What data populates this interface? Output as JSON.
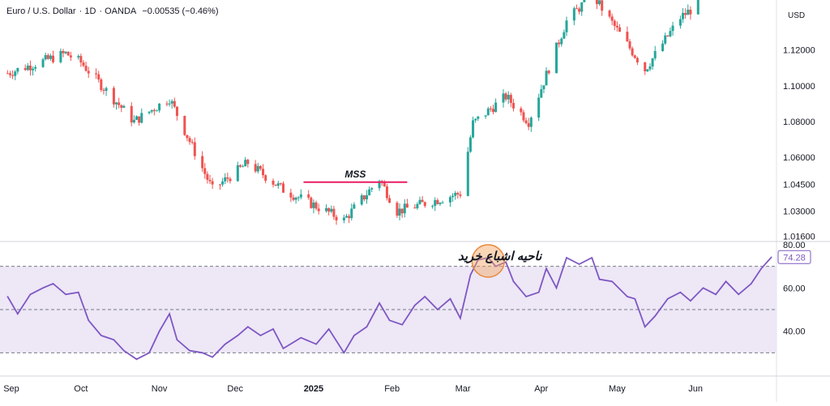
{
  "header": {
    "symbol": "Euro / U.S. Dollar",
    "interval": "1D",
    "broker": "OANDA",
    "change": "−0.00535 (−0.46%)"
  },
  "currency": "USD",
  "colors": {
    "up": "#26a69a",
    "down": "#ef5350",
    "rsi": "#7e57c2",
    "band": "#ede7f6",
    "mss": "#e91e63",
    "highlight": "#f4a460"
  },
  "chart_data": [
    {
      "type": "candlestick",
      "title": "Euro / U.S. Dollar · 1D · OANDA",
      "ylabel": "USD",
      "ylim": [
        1.014,
        1.146
      ],
      "yticks": [
        "1.12000",
        "1.10000",
        "1.08000",
        "1.06000",
        "1.04500",
        "1.03000",
        "1.01600"
      ],
      "ytick_values": [
        1.12,
        1.1,
        1.08,
        1.06,
        1.045,
        1.03,
        1.016
      ],
      "xticks": [
        "Sep",
        "Oct",
        "Nov",
        "Dec",
        "2025",
        "Feb",
        "Mar",
        "Apr",
        "May",
        "Jun"
      ],
      "annotation": {
        "label": "MSS",
        "price": 1.0462,
        "from": "2024-12-28",
        "to": "2025-02-07"
      },
      "key_closes": [
        {
          "date": "2024-09-02",
          "close": 1.107
        },
        {
          "date": "2024-09-25",
          "close": 1.118
        },
        {
          "date": "2024-10-01",
          "close": 1.113
        },
        {
          "date": "2024-10-22",
          "close": 1.08
        },
        {
          "date": "2024-11-05",
          "close": 1.093
        },
        {
          "date": "2024-11-22",
          "close": 1.042
        },
        {
          "date": "2024-12-06",
          "close": 1.057
        },
        {
          "date": "2024-12-20",
          "close": 1.042
        },
        {
          "date": "2025-01-13",
          "close": 1.025
        },
        {
          "date": "2025-01-27",
          "close": 1.048
        },
        {
          "date": "2025-02-03",
          "close": 1.03
        },
        {
          "date": "2025-02-28",
          "close": 1.04
        },
        {
          "date": "2025-03-05",
          "close": 1.079
        },
        {
          "date": "2025-03-18",
          "close": 1.094
        },
        {
          "date": "2025-03-27",
          "close": 1.08
        },
        {
          "date": "2025-04-11",
          "close": 1.136
        },
        {
          "date": "2025-04-21",
          "close": 1.151
        },
        {
          "date": "2025-05-12",
          "close": 1.109
        },
        {
          "date": "2025-05-26",
          "close": 1.138
        },
        {
          "date": "2025-06-12",
          "close": 1.156
        }
      ]
    },
    {
      "type": "line",
      "title": "RSI",
      "ylim": [
        20,
        80
      ],
      "yticks": [
        "80.00",
        "60.00",
        "40.00"
      ],
      "ytick_values": [
        80,
        60,
        40
      ],
      "levels": [
        70,
        50,
        30
      ],
      "last_value": "74.28",
      "annotation_text": "ناحیه اشباع خرید",
      "series": [
        {
          "date": "2024-09-02",
          "value": 56
        },
        {
          "date": "2024-09-06",
          "value": 48
        },
        {
          "date": "2024-09-11",
          "value": 57
        },
        {
          "date": "2024-09-16",
          "value": 60
        },
        {
          "date": "2024-09-20",
          "value": 62
        },
        {
          "date": "2024-09-25",
          "value": 57
        },
        {
          "date": "2024-09-30",
          "value": 58
        },
        {
          "date": "2024-10-04",
          "value": 45
        },
        {
          "date": "2024-10-09",
          "value": 38
        },
        {
          "date": "2024-10-14",
          "value": 36
        },
        {
          "date": "2024-10-18",
          "value": 31
        },
        {
          "date": "2024-10-23",
          "value": 27
        },
        {
          "date": "2024-10-28",
          "value": 30
        },
        {
          "date": "2024-11-01",
          "value": 40
        },
        {
          "date": "2024-11-05",
          "value": 48
        },
        {
          "date": "2024-11-08",
          "value": 36
        },
        {
          "date": "2024-11-13",
          "value": 31
        },
        {
          "date": "2024-11-18",
          "value": 30
        },
        {
          "date": "2024-11-22",
          "value": 28
        },
        {
          "date": "2024-11-27",
          "value": 34
        },
        {
          "date": "2024-12-02",
          "value": 38
        },
        {
          "date": "2024-12-06",
          "value": 42
        },
        {
          "date": "2024-12-11",
          "value": 38
        },
        {
          "date": "2024-12-16",
          "value": 41
        },
        {
          "date": "2024-12-20",
          "value": 32
        },
        {
          "date": "2024-12-27",
          "value": 37
        },
        {
          "date": "2025-01-02",
          "value": 34
        },
        {
          "date": "2025-01-07",
          "value": 41
        },
        {
          "date": "2025-01-13",
          "value": 30
        },
        {
          "date": "2025-01-17",
          "value": 38
        },
        {
          "date": "2025-01-22",
          "value": 42
        },
        {
          "date": "2025-01-27",
          "value": 53
        },
        {
          "date": "2025-01-31",
          "value": 45
        },
        {
          "date": "2025-02-05",
          "value": 43
        },
        {
          "date": "2025-02-10",
          "value": 52
        },
        {
          "date": "2025-02-14",
          "value": 56
        },
        {
          "date": "2025-02-19",
          "value": 50
        },
        {
          "date": "2025-02-24",
          "value": 55
        },
        {
          "date": "2025-02-28",
          "value": 46
        },
        {
          "date": "2025-03-04",
          "value": 66
        },
        {
          "date": "2025-03-07",
          "value": 73
        },
        {
          "date": "2025-03-11",
          "value": 74
        },
        {
          "date": "2025-03-14",
          "value": 70
        },
        {
          "date": "2025-03-18",
          "value": 72
        },
        {
          "date": "2025-03-21",
          "value": 63
        },
        {
          "date": "2025-03-26",
          "value": 56
        },
        {
          "date": "2025-03-31",
          "value": 58
        },
        {
          "date": "2025-04-03",
          "value": 69
        },
        {
          "date": "2025-04-07",
          "value": 60
        },
        {
          "date": "2025-04-11",
          "value": 74
        },
        {
          "date": "2025-04-16",
          "value": 71
        },
        {
          "date": "2025-04-21",
          "value": 74
        },
        {
          "date": "2025-04-24",
          "value": 64
        },
        {
          "date": "2025-04-29",
          "value": 63
        },
        {
          "date": "2025-05-05",
          "value": 56
        },
        {
          "date": "2025-05-08",
          "value": 55
        },
        {
          "date": "2025-05-12",
          "value": 42
        },
        {
          "date": "2025-05-16",
          "value": 47
        },
        {
          "date": "2025-05-21",
          "value": 55
        },
        {
          "date": "2025-05-26",
          "value": 58
        },
        {
          "date": "2025-05-30",
          "value": 54
        },
        {
          "date": "2025-06-04",
          "value": 60
        },
        {
          "date": "2025-06-09",
          "value": 57
        },
        {
          "date": "2025-06-13",
          "value": 63
        },
        {
          "date": "2025-06-18",
          "value": 57
        },
        {
          "date": "2025-06-23",
          "value": 62
        },
        {
          "date": "2025-06-27",
          "value": 69
        },
        {
          "date": "2025-07-01",
          "value": 74.28
        }
      ]
    }
  ]
}
